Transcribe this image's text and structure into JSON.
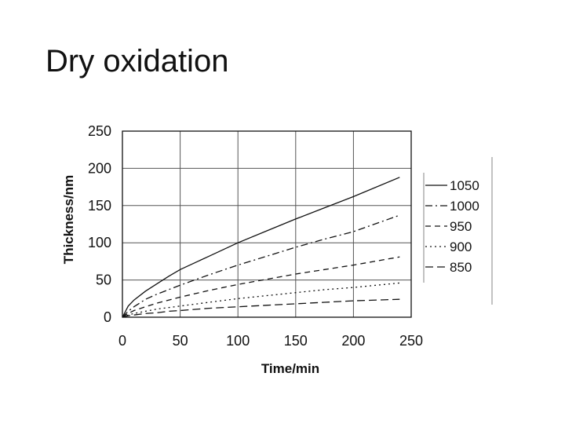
{
  "slide": {
    "title": "Dry oxidation"
  },
  "chart_data": {
    "type": "line",
    "xlabel": "Time/min",
    "ylabel": "Thickness/nm",
    "xlim": [
      0,
      250
    ],
    "ylim": [
      0,
      250
    ],
    "xticks": [
      0,
      50,
      100,
      150,
      200,
      250
    ],
    "yticks": [
      0,
      50,
      100,
      150,
      200,
      250
    ],
    "grid": true,
    "legend_position": "right",
    "series": [
      {
        "name": "1050",
        "dash": "solid",
        "points": [
          [
            0,
            0
          ],
          [
            5,
            15
          ],
          [
            10,
            23
          ],
          [
            20,
            35
          ],
          [
            30,
            45
          ],
          [
            40,
            55
          ],
          [
            50,
            64
          ],
          [
            75,
            82
          ],
          [
            100,
            100
          ],
          [
            125,
            116
          ],
          [
            150,
            132
          ],
          [
            175,
            147
          ],
          [
            200,
            162
          ],
          [
            240,
            188
          ]
        ]
      },
      {
        "name": "1000",
        "dash": "dashdot",
        "points": [
          [
            0,
            0
          ],
          [
            5,
            8
          ],
          [
            10,
            14
          ],
          [
            20,
            24
          ],
          [
            30,
            31
          ],
          [
            40,
            37
          ],
          [
            50,
            43
          ],
          [
            75,
            57
          ],
          [
            100,
            70
          ],
          [
            125,
            82
          ],
          [
            150,
            94
          ],
          [
            175,
            105
          ],
          [
            200,
            115
          ],
          [
            240,
            137
          ]
        ]
      },
      {
        "name": "950",
        "dash": "dash",
        "points": [
          [
            0,
            0
          ],
          [
            5,
            5
          ],
          [
            10,
            9
          ],
          [
            20,
            14
          ],
          [
            30,
            19
          ],
          [
            40,
            23
          ],
          [
            50,
            27
          ],
          [
            75,
            36
          ],
          [
            100,
            44
          ],
          [
            125,
            51
          ],
          [
            150,
            58
          ],
          [
            175,
            64
          ],
          [
            200,
            70
          ],
          [
            240,
            81
          ]
        ]
      },
      {
        "name": "900",
        "dash": "dot",
        "points": [
          [
            0,
            0
          ],
          [
            5,
            3
          ],
          [
            10,
            5
          ],
          [
            20,
            8
          ],
          [
            30,
            11
          ],
          [
            40,
            13
          ],
          [
            50,
            15
          ],
          [
            75,
            20
          ],
          [
            100,
            25
          ],
          [
            125,
            29
          ],
          [
            150,
            33
          ],
          [
            175,
            37
          ],
          [
            200,
            40
          ],
          [
            240,
            46
          ]
        ]
      },
      {
        "name": "850",
        "dash": "longdash",
        "points": [
          [
            0,
            0
          ],
          [
            5,
            2
          ],
          [
            10,
            3
          ],
          [
            20,
            5
          ],
          [
            30,
            6
          ],
          [
            40,
            8
          ],
          [
            50,
            9
          ],
          [
            75,
            12
          ],
          [
            100,
            14
          ],
          [
            125,
            16
          ],
          [
            150,
            18
          ],
          [
            175,
            20
          ],
          [
            200,
            22
          ],
          [
            240,
            24
          ]
        ]
      }
    ]
  }
}
